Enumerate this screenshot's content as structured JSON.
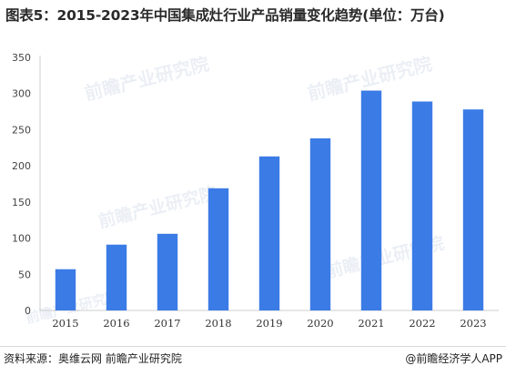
{
  "title": "图表5：2015-2023年中国集成灶行业产品销量变化趋势(单位：万台)",
  "footer": {
    "source": "资料来源：奥维云网 前瞻产业研究院",
    "credit": "@前瞻经济学人APP"
  },
  "watermark": "前瞻产业研究院",
  "colors": {
    "bar": "#3b7be6",
    "axis": "#cccccc"
  },
  "chart_data": {
    "type": "bar",
    "categories": [
      "2015",
      "2016",
      "2017",
      "2018",
      "2019",
      "2020",
      "2021",
      "2022",
      "2023"
    ],
    "values": [
      57,
      91,
      106,
      169,
      213,
      238,
      304,
      289,
      278
    ],
    "ylim": [
      0,
      350
    ],
    "yticks": [
      0,
      50,
      100,
      150,
      200,
      250,
      300,
      350
    ],
    "title": "图表5：2015-2023年中国集成灶行业产品销量变化趋势(单位：万台)",
    "xlabel": "",
    "ylabel": "",
    "grid": false,
    "legend": "none"
  }
}
